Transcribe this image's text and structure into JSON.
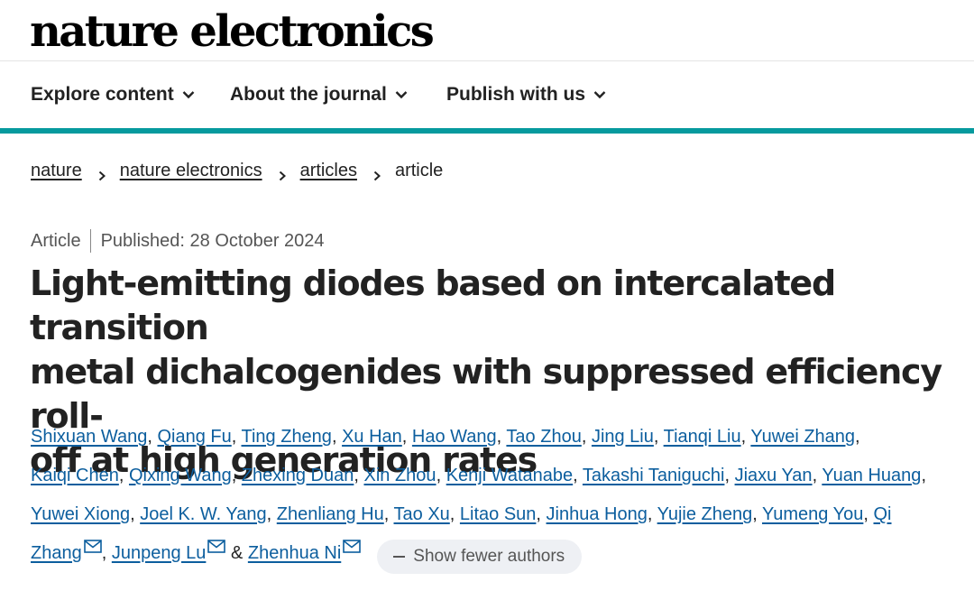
{
  "header": {
    "logo_text": "nature electronics"
  },
  "nav": {
    "items": [
      {
        "label": "Explore content"
      },
      {
        "label": "About the journal"
      },
      {
        "label": "Publish with us"
      }
    ]
  },
  "breadcrumb": {
    "items": [
      "nature",
      "nature electronics",
      "articles"
    ],
    "current": "article"
  },
  "article": {
    "type": "Article",
    "published": "Published: 28 October 2024",
    "title_lines": [
      "Light-emitting diodes based on intercalated transition",
      "metal dichalcogenides with suppressed efficiency roll-",
      "off at high generation rates"
    ]
  },
  "authors": {
    "list": [
      "Shixuan Wang",
      "Qiang Fu",
      "Ting Zheng",
      "Xu Han",
      "Hao Wang",
      "Tao Zhou",
      "Jing Liu",
      "Tianqi Liu",
      "Yuwei Zhang",
      "Kaiqi Chen",
      "Qixing Wang",
      "Zhexing Duan",
      "Xin Zhou",
      "Kenji Watanabe",
      "Takashi Taniguchi",
      "Jiaxu Yan",
      "Yuan Huang",
      "Yuwei Xiong",
      "Joel K. W. Yang",
      "Zhenliang Hu",
      "Tao Xu",
      "Litao Sun",
      "Jinhua Hong",
      "Yujie Zheng",
      "Yumeng You",
      "Qi Zhang",
      "Junpeng Lu",
      "Zhenhua Ni"
    ],
    "ampersand": "&",
    "show_fewer_label": "Show fewer authors"
  }
}
